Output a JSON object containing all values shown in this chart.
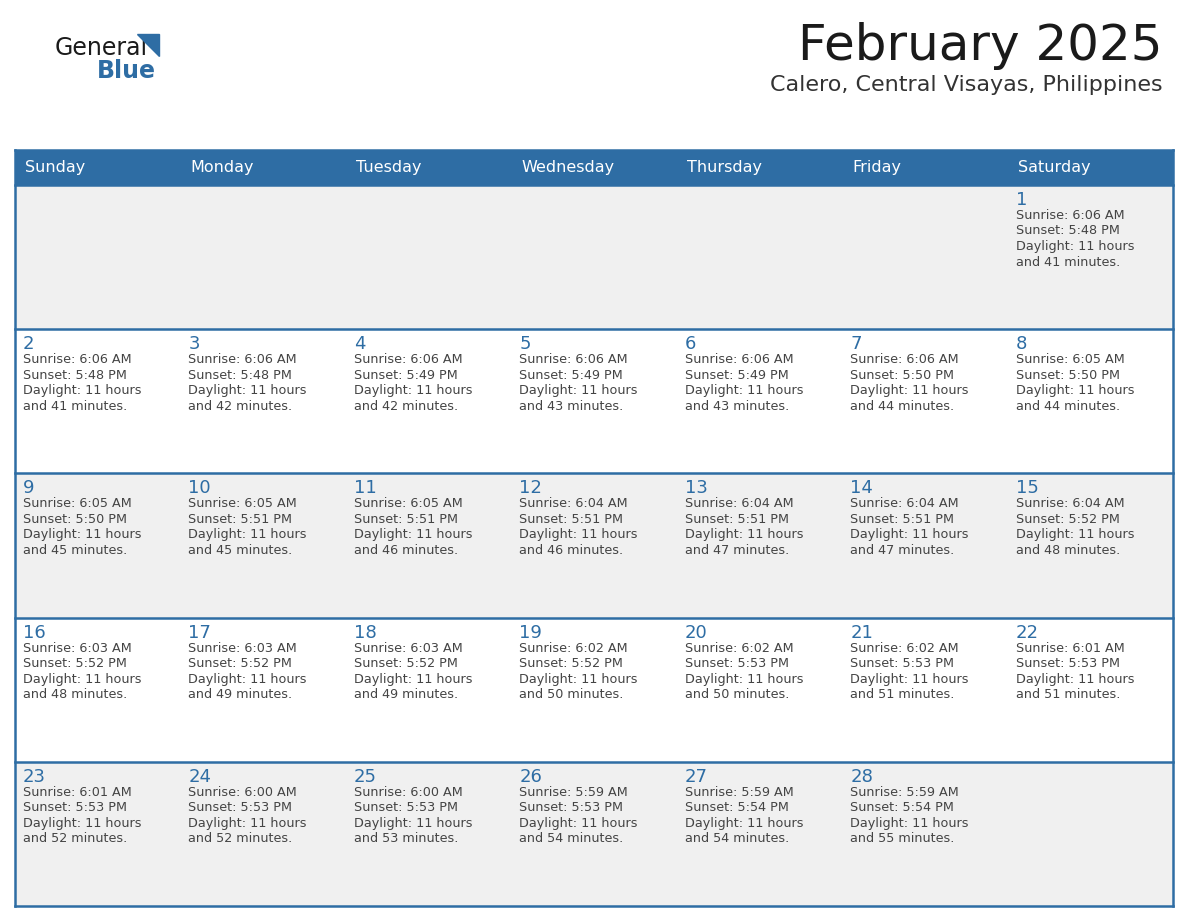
{
  "title": "February 2025",
  "subtitle": "Calero, Central Visayas, Philippines",
  "days_of_week": [
    "Sunday",
    "Monday",
    "Tuesday",
    "Wednesday",
    "Thursday",
    "Friday",
    "Saturday"
  ],
  "header_bg": "#2E6DA4",
  "header_text_color": "#FFFFFF",
  "cell_bg_odd": "#F0F0F0",
  "cell_bg_even": "#FFFFFF",
  "day_number_color": "#2E6DA4",
  "cell_text_color": "#444444",
  "grid_line_color": "#2E6DA4",
  "title_color": "#1A1A1A",
  "subtitle_color": "#333333",
  "logo_general_color": "#1A1A1A",
  "logo_blue_color": "#2E6DA4",
  "calendar": [
    [
      null,
      null,
      null,
      null,
      null,
      null,
      1
    ],
    [
      2,
      3,
      4,
      5,
      6,
      7,
      8
    ],
    [
      9,
      10,
      11,
      12,
      13,
      14,
      15
    ],
    [
      16,
      17,
      18,
      19,
      20,
      21,
      22
    ],
    [
      23,
      24,
      25,
      26,
      27,
      28,
      null
    ]
  ],
  "cell_data": {
    "1": {
      "sunrise": "6:06 AM",
      "sunset": "5:48 PM",
      "daylight": "11 hours",
      "daylight2": "and 41 minutes."
    },
    "2": {
      "sunrise": "6:06 AM",
      "sunset": "5:48 PM",
      "daylight": "11 hours",
      "daylight2": "and 41 minutes."
    },
    "3": {
      "sunrise": "6:06 AM",
      "sunset": "5:48 PM",
      "daylight": "11 hours",
      "daylight2": "and 42 minutes."
    },
    "4": {
      "sunrise": "6:06 AM",
      "sunset": "5:49 PM",
      "daylight": "11 hours",
      "daylight2": "and 42 minutes."
    },
    "5": {
      "sunrise": "6:06 AM",
      "sunset": "5:49 PM",
      "daylight": "11 hours",
      "daylight2": "and 43 minutes."
    },
    "6": {
      "sunrise": "6:06 AM",
      "sunset": "5:49 PM",
      "daylight": "11 hours",
      "daylight2": "and 43 minutes."
    },
    "7": {
      "sunrise": "6:06 AM",
      "sunset": "5:50 PM",
      "daylight": "11 hours",
      "daylight2": "and 44 minutes."
    },
    "8": {
      "sunrise": "6:05 AM",
      "sunset": "5:50 PM",
      "daylight": "11 hours",
      "daylight2": "and 44 minutes."
    },
    "9": {
      "sunrise": "6:05 AM",
      "sunset": "5:50 PM",
      "daylight": "11 hours",
      "daylight2": "and 45 minutes."
    },
    "10": {
      "sunrise": "6:05 AM",
      "sunset": "5:51 PM",
      "daylight": "11 hours",
      "daylight2": "and 45 minutes."
    },
    "11": {
      "sunrise": "6:05 AM",
      "sunset": "5:51 PM",
      "daylight": "11 hours",
      "daylight2": "and 46 minutes."
    },
    "12": {
      "sunrise": "6:04 AM",
      "sunset": "5:51 PM",
      "daylight": "11 hours",
      "daylight2": "and 46 minutes."
    },
    "13": {
      "sunrise": "6:04 AM",
      "sunset": "5:51 PM",
      "daylight": "11 hours",
      "daylight2": "and 47 minutes."
    },
    "14": {
      "sunrise": "6:04 AM",
      "sunset": "5:51 PM",
      "daylight": "11 hours",
      "daylight2": "and 47 minutes."
    },
    "15": {
      "sunrise": "6:04 AM",
      "sunset": "5:52 PM",
      "daylight": "11 hours",
      "daylight2": "and 48 minutes."
    },
    "16": {
      "sunrise": "6:03 AM",
      "sunset": "5:52 PM",
      "daylight": "11 hours",
      "daylight2": "and 48 minutes."
    },
    "17": {
      "sunrise": "6:03 AM",
      "sunset": "5:52 PM",
      "daylight": "11 hours",
      "daylight2": "and 49 minutes."
    },
    "18": {
      "sunrise": "6:03 AM",
      "sunset": "5:52 PM",
      "daylight": "11 hours",
      "daylight2": "and 49 minutes."
    },
    "19": {
      "sunrise": "6:02 AM",
      "sunset": "5:52 PM",
      "daylight": "11 hours",
      "daylight2": "and 50 minutes."
    },
    "20": {
      "sunrise": "6:02 AM",
      "sunset": "5:53 PM",
      "daylight": "11 hours",
      "daylight2": "and 50 minutes."
    },
    "21": {
      "sunrise": "6:02 AM",
      "sunset": "5:53 PM",
      "daylight": "11 hours",
      "daylight2": "and 51 minutes."
    },
    "22": {
      "sunrise": "6:01 AM",
      "sunset": "5:53 PM",
      "daylight": "11 hours",
      "daylight2": "and 51 minutes."
    },
    "23": {
      "sunrise": "6:01 AM",
      "sunset": "5:53 PM",
      "daylight": "11 hours",
      "daylight2": "and 52 minutes."
    },
    "24": {
      "sunrise": "6:00 AM",
      "sunset": "5:53 PM",
      "daylight": "11 hours",
      "daylight2": "and 52 minutes."
    },
    "25": {
      "sunrise": "6:00 AM",
      "sunset": "5:53 PM",
      "daylight": "11 hours",
      "daylight2": "and 53 minutes."
    },
    "26": {
      "sunrise": "5:59 AM",
      "sunset": "5:53 PM",
      "daylight": "11 hours",
      "daylight2": "and 54 minutes."
    },
    "27": {
      "sunrise": "5:59 AM",
      "sunset": "5:54 PM",
      "daylight": "11 hours",
      "daylight2": "and 54 minutes."
    },
    "28": {
      "sunrise": "5:59 AM",
      "sunset": "5:54 PM",
      "daylight": "11 hours",
      "daylight2": "and 55 minutes."
    }
  },
  "figsize": [
    11.88,
    9.18
  ],
  "dpi": 100
}
